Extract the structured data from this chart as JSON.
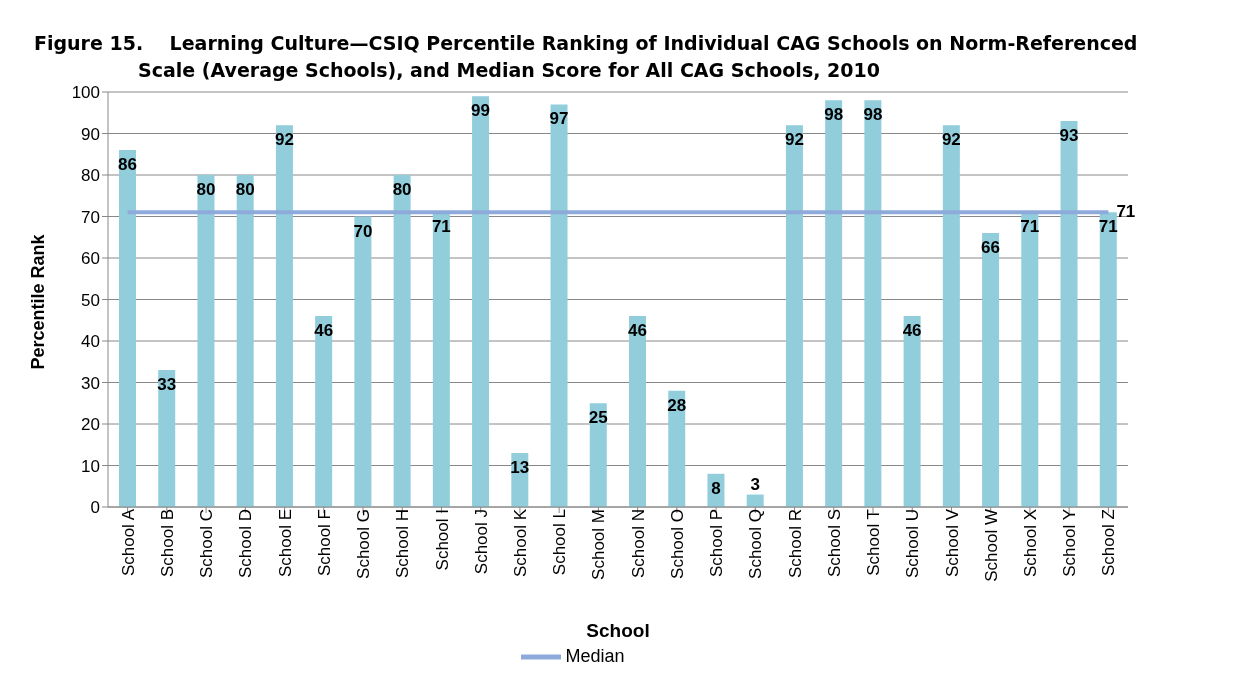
{
  "chart_data": {
    "type": "bar",
    "title": "Figure 15.    Learning Culture—CSIQ Percentile Ranking of Individual CAG Schools on Norm-Referenced Scale (Average Schools), and Median Score for All CAG Schools, 2010",
    "xlabel": "School",
    "ylabel": "Percentile Rank",
    "categories": [
      "School A",
      "School B",
      "School C",
      "School D",
      "School E",
      "School F",
      "School G",
      "School H",
      "School I",
      "School J",
      "School K",
      "School L",
      "School M",
      "School N",
      "School O",
      "School P",
      "School Q",
      "School R",
      "School S",
      "School T",
      "School U",
      "School V",
      "School W",
      "School X",
      "School Y",
      "School Z"
    ],
    "series": [
      {
        "color": "#92cddc",
        "values": [
          86,
          33,
          80,
          80,
          92,
          46,
          70,
          80,
          71,
          99,
          13,
          97,
          25,
          46,
          28,
          8,
          3,
          92,
          98,
          98,
          46,
          92,
          66,
          71,
          93,
          71
        ],
        "value_labels": [
          "86",
          "33",
          "80",
          "80",
          "92",
          "46",
          "70",
          "80",
          "71",
          "99",
          "13",
          "97",
          "25",
          "46",
          "28",
          "8",
          "3",
          "92",
          "98",
          "98",
          "46",
          "92",
          "66",
          "71",
          "93",
          "71"
        ]
      },
      {
        "type": "line",
        "name": "Median",
        "color": "#8eaadb",
        "values": [
          71,
          71,
          71,
          71,
          71,
          71,
          71,
          71,
          71,
          71,
          71,
          71,
          71,
          71,
          71,
          71,
          71,
          71,
          71,
          71,
          71,
          71,
          71,
          71,
          71,
          71
        ],
        "value_labels": [
          null,
          null,
          null,
          null,
          null,
          null,
          null,
          null,
          null,
          null,
          null,
          null,
          null,
          null,
          null,
          null,
          null,
          null,
          null,
          null,
          null,
          null,
          null,
          null,
          null,
          "71"
        ]
      }
    ],
    "ylim": [
      0,
      100
    ],
    "yticks": [
      0,
      10,
      20,
      30,
      40,
      50,
      60,
      70,
      80,
      90,
      100
    ],
    "grid": "y",
    "legend": "bottom",
    "marker": "none"
  }
}
